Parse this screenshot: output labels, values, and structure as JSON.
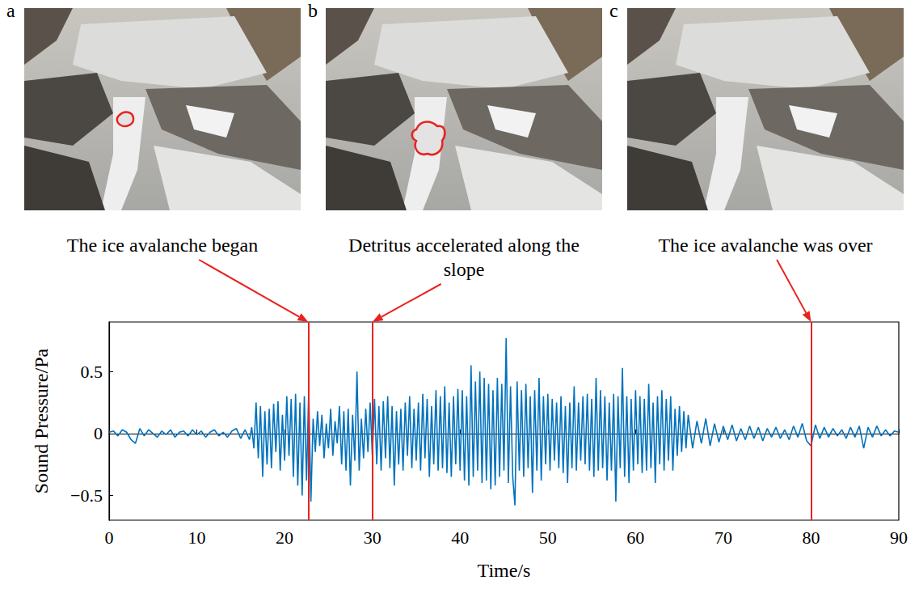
{
  "panels": [
    {
      "label": "a"
    },
    {
      "label": "b"
    },
    {
      "label": "c"
    }
  ],
  "chart_data": {
    "type": "line",
    "x_label": "Time/s",
    "y_label": "Sound Pressure/Pa",
    "xlim": [
      0,
      90
    ],
    "xticks": [
      0,
      10,
      20,
      30,
      40,
      50,
      60,
      70,
      80,
      90
    ],
    "ylim": [
      -0.7,
      0.9
    ],
    "yticks": [
      {
        "value": -0.5,
        "label": "−0.5"
      },
      0,
      0.5
    ],
    "grid": false,
    "color": "#0072bd",
    "annotations": [
      {
        "x": 22.7,
        "text": "The ice avalanche began",
        "color": "#e8231f"
      },
      {
        "x": 30,
        "text": "Detritus accelerated along the slope",
        "color": "#e8231f"
      },
      {
        "x": 80,
        "text": "The ice avalanche was over",
        "color": "#e8231f"
      }
    ],
    "x": [
      0,
      0.5,
      1,
      1.5,
      2,
      2.5,
      3,
      3.5,
      4,
      4.5,
      5,
      5.5,
      6,
      6.5,
      7,
      7.5,
      8,
      8.5,
      9,
      9.5,
      10,
      10.5,
      11,
      11.5,
      12,
      12.5,
      13,
      13.5,
      14,
      14.5,
      15,
      15.5,
      16,
      16.25,
      16.5,
      16.75,
      17,
      17.25,
      17.5,
      17.75,
      18,
      18.25,
      18.5,
      18.75,
      19,
      19.25,
      19.5,
      19.75,
      20,
      20.25,
      20.5,
      20.75,
      21,
      21.25,
      21.5,
      21.75,
      22,
      22.25,
      22.5,
      22.75,
      23,
      23.25,
      23.5,
      23.75,
      24,
      24.25,
      24.5,
      24.75,
      25,
      25.25,
      25.5,
      25.75,
      26,
      26.25,
      26.5,
      26.75,
      27,
      27.25,
      27.5,
      27.75,
      28,
      28.25,
      28.5,
      28.75,
      29,
      29.25,
      29.5,
      29.75,
      30,
      30.25,
      30.5,
      30.75,
      31,
      31.25,
      31.5,
      31.75,
      32,
      32.25,
      32.5,
      32.75,
      33,
      33.25,
      33.5,
      33.75,
      34,
      34.25,
      34.5,
      34.75,
      35,
      35.25,
      35.5,
      35.75,
      36,
      36.25,
      36.5,
      36.75,
      37,
      37.25,
      37.5,
      37.75,
      38,
      38.25,
      38.5,
      38.75,
      39,
      39.25,
      39.5,
      39.75,
      40,
      40.25,
      40.5,
      40.75,
      41,
      41.25,
      41.5,
      41.75,
      42,
      42.25,
      42.5,
      42.75,
      43,
      43.25,
      43.5,
      43.75,
      44,
      44.25,
      44.5,
      44.75,
      45,
      45.25,
      45.5,
      45.75,
      46,
      46.25,
      46.5,
      46.75,
      47,
      47.25,
      47.5,
      47.75,
      48,
      48.25,
      48.5,
      48.75,
      49,
      49.25,
      49.5,
      49.75,
      50,
      50.25,
      50.5,
      50.75,
      51,
      51.25,
      51.5,
      51.75,
      52,
      52.25,
      52.5,
      52.75,
      53,
      53.25,
      53.5,
      53.75,
      54,
      54.25,
      54.5,
      54.75,
      55,
      55.25,
      55.5,
      55.75,
      56,
      56.25,
      56.5,
      56.75,
      57,
      57.25,
      57.5,
      57.75,
      58,
      58.25,
      58.5,
      58.75,
      59,
      59.25,
      59.5,
      59.75,
      60,
      60.25,
      60.5,
      60.75,
      61,
      61.25,
      61.5,
      61.75,
      62,
      62.25,
      62.5,
      62.75,
      63,
      63.25,
      63.5,
      63.75,
      64,
      64.25,
      64.5,
      64.75,
      65,
      65.25,
      65.5,
      65.75,
      66,
      66.5,
      67,
      67.5,
      68,
      68.5,
      69,
      69.5,
      70,
      70.5,
      71,
      71.5,
      72,
      72.5,
      73,
      73.5,
      74,
      74.5,
      75,
      75.5,
      76,
      76.5,
      77,
      77.5,
      78,
      78.5,
      79,
      79.5,
      80,
      80.5,
      81,
      81.5,
      82,
      82.5,
      83,
      83.5,
      84,
      84.5,
      85,
      85.5,
      86,
      86.5,
      87,
      87.5,
      88,
      88.5,
      89,
      89.5,
      90
    ],
    "values": [
      0.01,
      0.02,
      -0.02,
      0.03,
      0.01,
      -0.05,
      -0.08,
      0.04,
      -0.02,
      0.03,
      0,
      -0.03,
      0.02,
      -0.01,
      0.03,
      -0.03,
      0.01,
      0.02,
      -0.02,
      0.03,
      -0.01,
      0.02,
      -0.03,
      0.01,
      0.03,
      -0.02,
      0.01,
      -0.03,
      0.02,
      0.04,
      -0.04,
      0.03,
      -0.05,
      0.05,
      -0.12,
      0.25,
      -0.2,
      0.22,
      -0.35,
      0.18,
      -0.25,
      0.2,
      -0.28,
      0.24,
      -0.15,
      0.26,
      -0.3,
      0.15,
      -0.22,
      0.3,
      -0.18,
      0.28,
      -0.35,
      0.32,
      -0.42,
      0.25,
      -0.5,
      0.3,
      -0.38,
      0.35,
      -0.55,
      0.12,
      -0.15,
      0.18,
      -0.1,
      0.15,
      -0.2,
      0.08,
      -0.12,
      0.2,
      -0.18,
      0.1,
      -0.08,
      0.22,
      -0.25,
      0.18,
      -0.3,
      0.2,
      -0.42,
      0.15,
      -0.22,
      0.5,
      -0.3,
      0.12,
      -0.2,
      0.2,
      -0.15,
      0.25,
      -0.18,
      0.28,
      -0.25,
      0.22,
      -0.3,
      0.26,
      -0.2,
      0.3,
      -0.28,
      0.22,
      -0.42,
      0.18,
      -0.25,
      0.2,
      -0.3,
      0.25,
      -0.18,
      0.3,
      -0.28,
      0.2,
      -0.22,
      0.25,
      -0.3,
      0.32,
      -0.2,
      0.28,
      -0.35,
      0.22,
      -0.25,
      0.35,
      -0.3,
      0.3,
      -0.28,
      0.38,
      -0.32,
      0.25,
      -0.35,
      0.3,
      -0.25,
      0.36,
      -0.3,
      0.35,
      -0.38,
      0.3,
      -0.42,
      0.55,
      -0.35,
      0.42,
      -0.3,
      0.5,
      -0.4,
      0.45,
      -0.38,
      0.4,
      -0.45,
      0.35,
      -0.42,
      0.45,
      -0.35,
      0.4,
      -0.3,
      0.77,
      -0.4,
      0.38,
      -0.35,
      -0.58,
      0.42,
      -0.3,
      0.35,
      -0.35,
      0.4,
      -0.28,
      0.3,
      -0.48,
      0.35,
      -0.3,
      0.45,
      -0.38,
      0.3,
      -0.25,
      0.32,
      -0.3,
      0.28,
      -0.22,
      0.25,
      -0.28,
      0.3,
      -0.32,
      0.22,
      -0.4,
      0.25,
      -0.28,
      0.38,
      -0.3,
      0.25,
      -0.22,
      0.3,
      -0.25,
      0.32,
      -0.3,
      0.28,
      -0.35,
      0.45,
      -0.3,
      0.35,
      -0.28,
      0.3,
      -0.38,
      0.25,
      -0.3,
      0.32,
      -0.55,
      0.3,
      -0.28,
      0.53,
      -0.35,
      0.3,
      -0.4,
      0.28,
      -0.3,
      0.35,
      -0.25,
      0.3,
      -0.32,
      0.28,
      -0.3,
      0.4,
      -0.28,
      0.25,
      -0.4,
      0.3,
      -0.25,
      0.35,
      -0.3,
      0.28,
      -0.22,
      0.3,
      -0.3,
      0.2,
      -0.18,
      0.22,
      -0.15,
      0.18,
      -0.12,
      0.15,
      -0.12,
      0.1,
      -0.08,
      0.12,
      -0.1,
      0.08,
      -0.07,
      0.06,
      -0.05,
      0.07,
      -0.06,
      0.04,
      -0.05,
      0.06,
      -0.04,
      0.05,
      -0.06,
      0.04,
      -0.03,
      0.05,
      -0.04,
      0.03,
      -0.05,
      0.06,
      -0.03,
      0.08,
      -0.06,
      -0.1,
      0.07,
      -0.04,
      0.05,
      -0.03,
      0.04,
      -0.02,
      0.03,
      -0.04,
      0.05,
      -0.03,
      0.06,
      -0.12,
      0.05,
      -0.03,
      0.06,
      -0.02,
      0.03,
      -0.02,
      0.02,
      0.01
    ]
  }
}
